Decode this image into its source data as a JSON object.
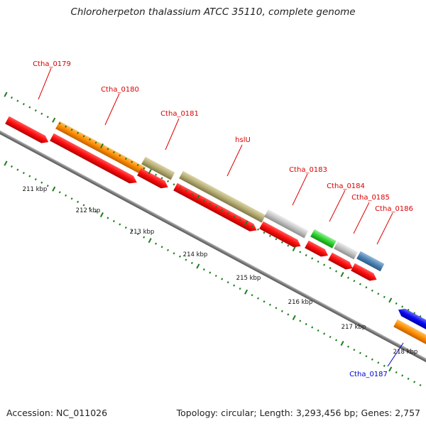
{
  "title": "Chloroherpeton thalassium ATCC 35110, complete genome",
  "footer": {
    "accession": "Accession: NC_011026",
    "topology": "Topology: circular; Length: 3,293,456 bp; Genes: 2,757"
  },
  "colors": {
    "backbone": "#888888",
    "tick": "#1d7d1d",
    "label_red": "#dd0000",
    "label_blue": "#0000cc",
    "cds": "#ff1010",
    "gene_orange": "#ff8c00",
    "gene_olive": "#b9b07a",
    "gene_silver": "#c0c0c0",
    "gene_green": "#33d633",
    "gene_steel": "#4f83b4",
    "gene_blue": "#0a0af0"
  },
  "scale": {
    "kbp_labels": [
      "211 kbp",
      "212 kbp",
      "213 kbp",
      "214 kbp",
      "215 kbp",
      "216 kbp",
      "217 kbp",
      "218 kbp"
    ]
  },
  "genes": [
    {
      "label": "Ctha_0179",
      "label_color": "red"
    },
    {
      "label": "Ctha_0180",
      "label_color": "red"
    },
    {
      "label": "Ctha_0181",
      "label_color": "red"
    },
    {
      "label": "hslU",
      "label_color": "red"
    },
    {
      "label": "Ctha_0183",
      "label_color": "red"
    },
    {
      "label": "Ctha_0184",
      "label_color": "red"
    },
    {
      "label": "Ctha_0185",
      "label_color": "red"
    },
    {
      "label": "Ctha_0186",
      "label_color": "red"
    },
    {
      "label": "Ctha_0187",
      "label_color": "blue"
    }
  ]
}
